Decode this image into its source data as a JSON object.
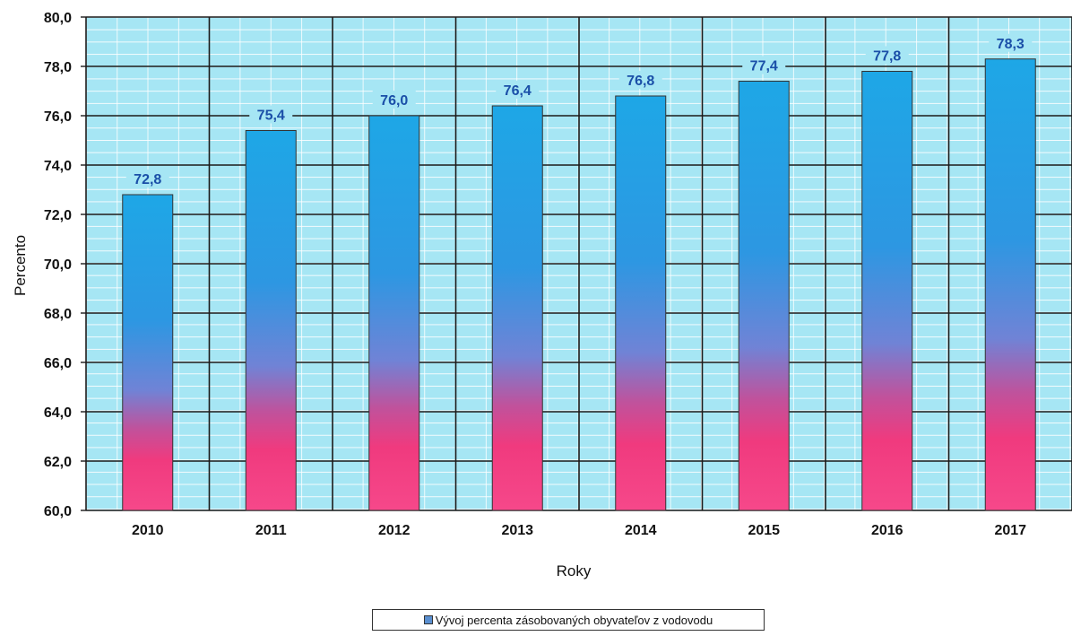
{
  "chart_data": {
    "type": "bar",
    "title": "",
    "xlabel": "Roky",
    "ylabel": "Percento",
    "categories": [
      "2010",
      "2011",
      "2012",
      "2013",
      "2014",
      "2015",
      "2016",
      "2017"
    ],
    "series": [
      {
        "name": "Vývoj percenta zásobovaných obyvateľov z vodovodu",
        "values": [
          72.8,
          75.4,
          76.0,
          76.4,
          76.8,
          77.4,
          77.8,
          78.3
        ],
        "labels": [
          "72,8",
          "75,4",
          "76,0",
          "76,4",
          "76,8",
          "77,4",
          "77,8",
          "78,3"
        ]
      }
    ],
    "ylim": [
      60,
      80
    ],
    "yticks": [
      "60,0",
      "62,0",
      "64,0",
      "66,0",
      "68,0",
      "70,0",
      "72,0",
      "74,0",
      "76,0",
      "78,0",
      "80,0"
    ],
    "grid": true,
    "legend_position": "bottom",
    "colors": {
      "plot_background": "#a6e6f4",
      "bar_top": "#1ea7e6",
      "bar_mid": "#6e88d8",
      "bar_bottom": "#f03a7e",
      "data_label": "#1a4fa8"
    }
  }
}
